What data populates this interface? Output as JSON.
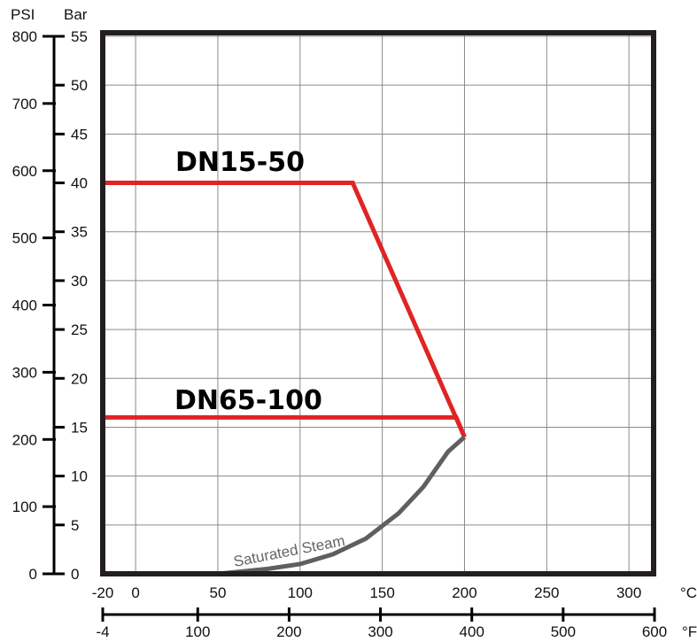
{
  "chart_data": {
    "type": "line",
    "title": "",
    "axes": {
      "x_celsius": {
        "unit": "°C",
        "range": [
          -20,
          315
        ],
        "ticks": [
          -20,
          0,
          50,
          100,
          150,
          200,
          250,
          300
        ]
      },
      "x_fahrenheit": {
        "unit": "°F",
        "range": [
          -4,
          599
        ],
        "ticks": [
          -4,
          100,
          200,
          300,
          400,
          500,
          600
        ]
      },
      "y_bar": {
        "unit": "Bar",
        "range": [
          0,
          55
        ],
        "ticks": [
          0,
          5,
          10,
          15,
          20,
          25,
          30,
          35,
          40,
          45,
          50,
          55
        ]
      },
      "y_psi": {
        "unit": "PSI",
        "range": [
          0,
          800
        ],
        "ticks": [
          0,
          100,
          200,
          300,
          400,
          500,
          600,
          700,
          800
        ]
      }
    },
    "grid": true,
    "series": [
      {
        "name": "DN15-50",
        "color": "#e02424",
        "x": [
          -20,
          132,
          200
        ],
        "y": [
          40,
          40,
          14
        ]
      },
      {
        "name": "DN65-100",
        "color": "#e02424",
        "x": [
          -20,
          195,
          200
        ],
        "y": [
          16,
          16,
          14
        ]
      },
      {
        "name": "Saturated Steam",
        "color": "#5f5f5f",
        "x": [
          50,
          80,
          100,
          120,
          140,
          160,
          175,
          190,
          200
        ],
        "y": [
          0,
          0.5,
          1,
          2,
          3.6,
          6.2,
          8.9,
          12.5,
          14
        ]
      }
    ]
  }
}
